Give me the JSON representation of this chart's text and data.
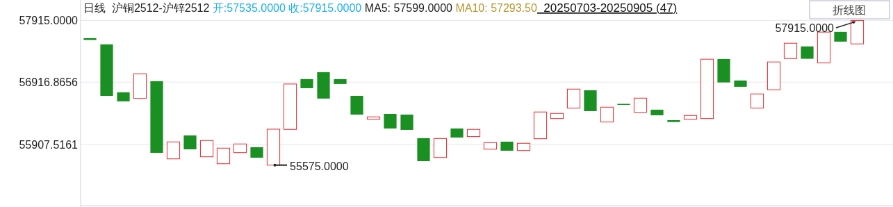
{
  "chart_data": {
    "type": "candlestick",
    "title": "日线  沪铜2512-沪锌2512",
    "subtitle": "20250703-20250905 (47)",
    "annotations": [
      "开:57535.0000",
      "收:57915.0000",
      "MA5: 57599.0000",
      "MA10: 57293.50",
      "折线图",
      "57915.0000",
      "55575.0000"
    ],
    "categories": [
      null,
      null,
      null,
      null,
      null,
      null,
      null,
      null,
      null,
      null,
      null,
      null,
      null,
      null,
      null,
      null,
      null,
      null,
      null,
      null,
      null,
      null,
      null,
      null,
      null,
      null,
      null,
      null,
      null,
      null,
      null,
      null,
      null,
      null,
      null,
      null,
      null,
      null,
      null,
      null,
      null,
      null,
      null,
      null,
      null,
      null,
      null
    ],
    "ohlc": [
      [
        57628,
        57628,
        57598,
        57598
      ],
      [
        57527,
        57527,
        56695,
        56695
      ],
      [
        56752,
        56752,
        56606,
        56606
      ],
      [
        56654,
        57052,
        56654,
        57052
      ],
      [
        56932,
        56932,
        55774,
        55774
      ],
      [
        55676,
        55950,
        55676,
        55950
      ],
      [
        56055,
        56055,
        55830,
        55830
      ],
      [
        55710,
        55973,
        55710,
        55973
      ],
      [
        55597,
        55849,
        55597,
        55849
      ],
      [
        55777,
        55917,
        55777,
        55917
      ],
      [
        55864,
        55864,
        55695,
        55695
      ],
      [
        55575,
        56156,
        55575,
        56156
      ],
      [
        56153,
        56887,
        56153,
        56887
      ],
      [
        56965,
        56965,
        56819,
        56819
      ],
      [
        57078,
        57078,
        56651,
        56651
      ],
      [
        56965,
        56965,
        56887,
        56887
      ],
      [
        56695,
        56695,
        56392,
        56392
      ],
      [
        56317,
        56355,
        56317,
        56355
      ],
      [
        56403,
        56403,
        56167,
        56167
      ],
      [
        56392,
        56392,
        56145,
        56145
      ],
      [
        56010,
        56010,
        55639,
        55639
      ],
      [
        55698,
        56006,
        55698,
        56006
      ],
      [
        56167,
        56167,
        56021,
        56021
      ],
      [
        56036,
        56153,
        56036,
        56153
      ],
      [
        55833,
        55939,
        55833,
        55939
      ],
      [
        55954,
        55954,
        55808,
        55808
      ],
      [
        55811,
        55928,
        55811,
        55928
      ],
      [
        56002,
        56434,
        56002,
        56434
      ],
      [
        56328,
        56411,
        56328,
        56411
      ],
      [
        56496,
        56804,
        56496,
        56804
      ],
      [
        56785,
        56785,
        56448,
        56448
      ],
      [
        56272,
        56512,
        56272,
        56512
      ],
      [
        56557,
        56557,
        56557,
        56557
      ],
      [
        56429,
        56658,
        56429,
        56658
      ],
      [
        56471,
        56471,
        56381,
        56381
      ],
      [
        56302,
        56302,
        56272,
        56272
      ],
      [
        56317,
        56377,
        56317,
        56377
      ],
      [
        56328,
        57288,
        56328,
        57288
      ],
      [
        57291,
        57291,
        56912,
        56912
      ],
      [
        56943,
        56943,
        56842,
        56842
      ],
      [
        56497,
        56726,
        56497,
        56726
      ],
      [
        56793,
        57243,
        56793,
        57243
      ],
      [
        57299,
        57546,
        57299,
        57546
      ],
      [
        57494,
        57494,
        57295,
        57295
      ],
      [
        57227,
        57726,
        57227,
        57726
      ],
      [
        57730,
        57730,
        57572,
        57572
      ],
      [
        57535,
        57915,
        57535,
        57915
      ]
    ],
    "colors": [
      "#1a8f22",
      "#1a8f22",
      "#1a8f22",
      "#e8282e",
      "#1a8f22",
      "#e8282e",
      "#1a8f22",
      "#e8282e",
      "#e8282e",
      "#e8282e",
      "#1a8f22",
      "#e8282e",
      "#e8282e",
      "#1a8f22",
      "#1a8f22",
      "#1a8f22",
      "#1a8f22",
      "#e8282e",
      "#1a8f22",
      "#1a8f22",
      "#1a8f22",
      "#e8282e",
      "#1a8f22",
      "#e8282e",
      "#e8282e",
      "#1a8f22",
      "#e8282e",
      "#e8282e",
      "#e8282e",
      "#e8282e",
      "#1a8f22",
      "#e8282e",
      "#1a8f22",
      "#e8282e",
      "#1a8f22",
      "#1a8f22",
      "#e8282e",
      "#e8282e",
      "#1a8f22",
      "#1a8f22",
      "#e8282e",
      "#e8282e",
      "#e8282e",
      "#1a8f22",
      "#e8282e",
      "#1a8f22",
      "#e8282e"
    ],
    "ylim": [
      54920,
      58245
    ],
    "yticks": [
      {
        "value": 57915,
        "label": "57915.0000"
      },
      {
        "value": 56916.8656,
        "label": "56916.8656"
      },
      {
        "value": 55907.5161,
        "label": "55907.5161"
      }
    ],
    "grid": "y"
  }
}
